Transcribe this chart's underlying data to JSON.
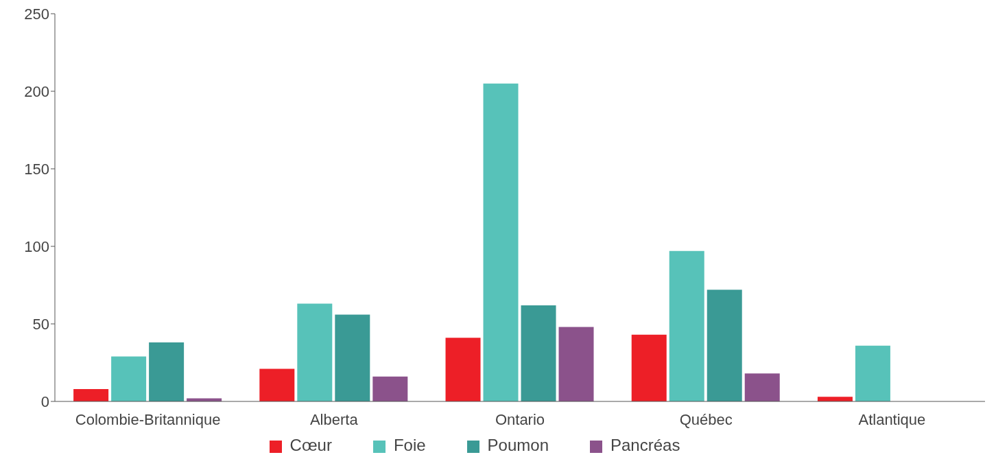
{
  "chart_data": {
    "type": "bar",
    "categories": [
      "Colombie-Britannique",
      "Alberta",
      "Ontario",
      "Québec",
      "Atlantique"
    ],
    "series": [
      {
        "name": "Cœur",
        "color": "#ed1f27",
        "values": [
          8,
          21,
          41,
          43,
          3
        ]
      },
      {
        "name": "Foie",
        "color": "#57c2b9",
        "values": [
          29,
          63,
          205,
          97,
          36
        ]
      },
      {
        "name": "Poumon",
        "color": "#3a9a95",
        "values": [
          38,
          56,
          62,
          72,
          0
        ]
      },
      {
        "name": "Pancréas",
        "color": "#8b528b",
        "values": [
          2,
          16,
          48,
          18,
          0
        ]
      }
    ],
    "ylim": [
      0,
      250
    ],
    "yticks": [
      0,
      50,
      100,
      150,
      200,
      250
    ],
    "grid": false,
    "legend": "bottom"
  }
}
